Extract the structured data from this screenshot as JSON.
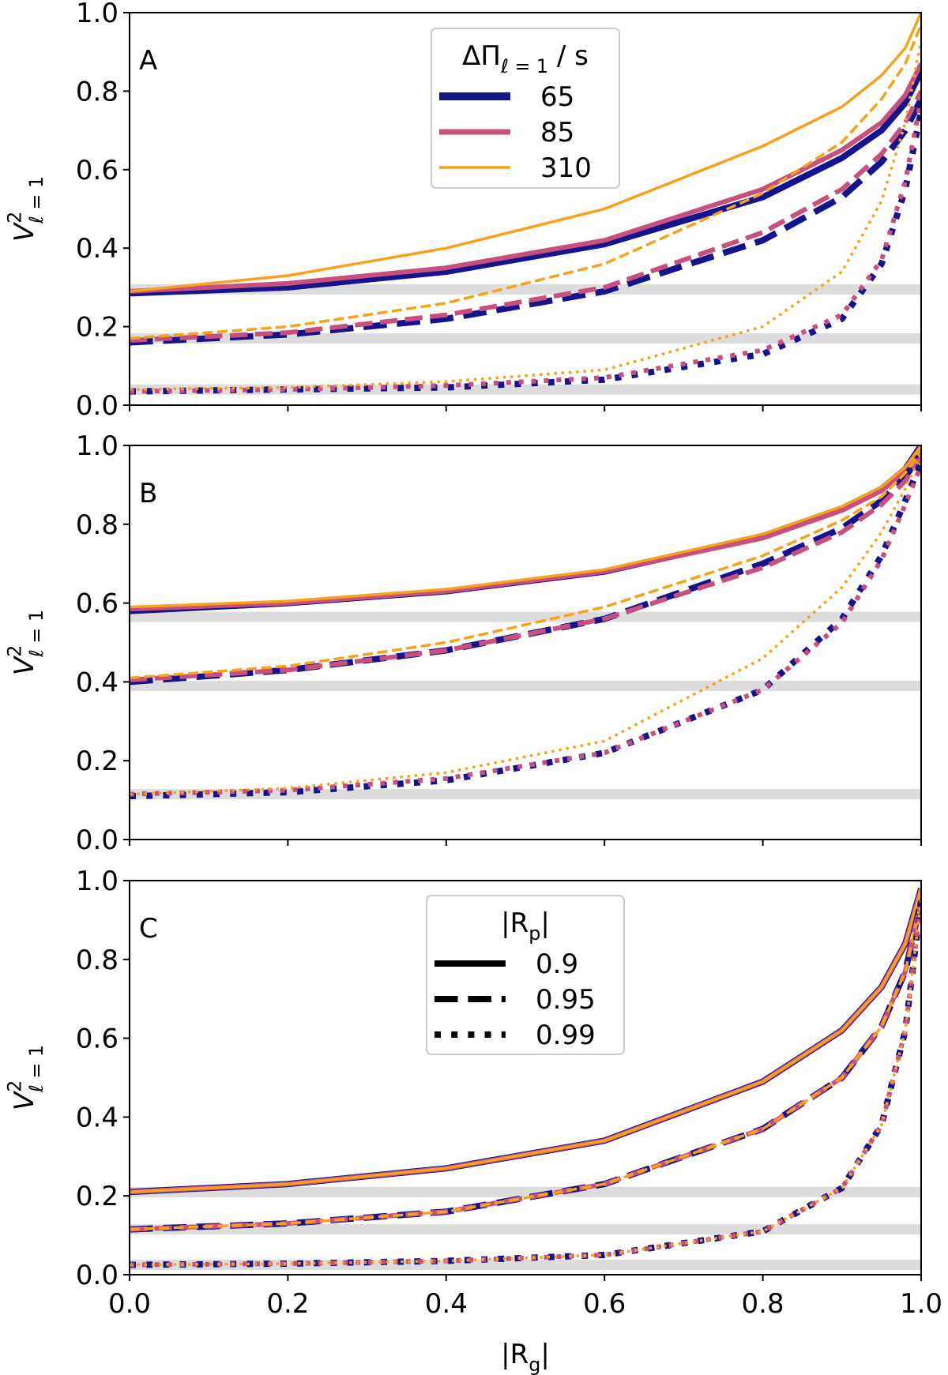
{
  "chart_data": [
    {
      "type": "line",
      "panel_label": "A",
      "ylabel": {
        "base": "V",
        "sup": "2",
        "sub": "ℓ = 1"
      },
      "x": [
        0,
        0.2,
        0.4,
        0.6,
        0.8,
        0.9,
        0.95,
        0.98,
        1.0
      ],
      "xlim": [
        0,
        1
      ],
      "ylim": [
        0,
        1
      ],
      "xticks": [
        {
          "value": 0,
          "label": "0.0"
        },
        {
          "value": 0.2,
          "label": "0.2"
        },
        {
          "value": 0.4,
          "label": "0.4"
        },
        {
          "value": 0.6,
          "label": "0.6"
        },
        {
          "value": 0.8,
          "label": "0.8"
        },
        {
          "value": 1,
          "label": "1.0"
        }
      ],
      "show_xticklabels": false,
      "yticks": [
        {
          "value": 0,
          "label": "0.0"
        },
        {
          "value": 0.2,
          "label": "0.2"
        },
        {
          "value": 0.4,
          "label": "0.4"
        },
        {
          "value": 0.6,
          "label": "0.6"
        },
        {
          "value": 0.8,
          "label": "0.8"
        },
        {
          "value": 1,
          "label": "1.0"
        }
      ],
      "reference_lines": [
        0.295,
        0.17,
        0.04
      ],
      "legend": {
        "corner": "top-center",
        "title": {
          "base": "ΔΠ",
          "sub": "ℓ = 1",
          "tail": " / s"
        },
        "entries": [
          {
            "label": "65",
            "color": "#14148c",
            "style": "solid",
            "width": 10
          },
          {
            "label": "85",
            "color": "#c8507e",
            "style": "solid",
            "width": 7
          },
          {
            "label": "310",
            "color": "#f9a11b",
            "style": "solid",
            "width": 3.5
          }
        ]
      },
      "series": [
        {
          "color": "#14148c",
          "style": "solid",
          "width": 8,
          "values": [
            0.285,
            0.3,
            0.34,
            0.41,
            0.53,
            0.63,
            0.7,
            0.77,
            0.85
          ]
        },
        {
          "color": "#c8507e",
          "style": "solid",
          "width": 6,
          "values": [
            0.29,
            0.31,
            0.35,
            0.42,
            0.55,
            0.65,
            0.72,
            0.79,
            0.87
          ]
        },
        {
          "color": "#f9a11b",
          "style": "solid",
          "width": 3.5,
          "values": [
            0.29,
            0.33,
            0.4,
            0.5,
            0.66,
            0.76,
            0.84,
            0.91,
            1.0
          ]
        },
        {
          "color": "#14148c",
          "style": "dashed",
          "width": 8,
          "values": [
            0.16,
            0.18,
            0.22,
            0.29,
            0.42,
            0.53,
            0.62,
            0.7,
            0.78
          ]
        },
        {
          "color": "#c8507e",
          "style": "dashed",
          "width": 6,
          "values": [
            0.165,
            0.185,
            0.23,
            0.3,
            0.44,
            0.55,
            0.64,
            0.72,
            0.8
          ]
        },
        {
          "color": "#f9a11b",
          "style": "dashed",
          "width": 3.5,
          "values": [
            0.17,
            0.2,
            0.26,
            0.36,
            0.54,
            0.67,
            0.78,
            0.87,
            0.97
          ]
        },
        {
          "color": "#14148c",
          "style": "dotted",
          "width": 8,
          "values": [
            0.035,
            0.04,
            0.045,
            0.065,
            0.13,
            0.22,
            0.36,
            0.55,
            0.75
          ]
        },
        {
          "color": "#c8507e",
          "style": "dotted",
          "width": 6,
          "values": [
            0.035,
            0.04,
            0.05,
            0.07,
            0.14,
            0.23,
            0.37,
            0.57,
            0.78
          ]
        },
        {
          "color": "#f9a11b",
          "style": "dotted",
          "width": 3.5,
          "values": [
            0.04,
            0.045,
            0.06,
            0.09,
            0.2,
            0.34,
            0.52,
            0.72,
            0.93
          ]
        }
      ]
    },
    {
      "type": "line",
      "panel_label": "B",
      "ylabel": {
        "base": "V",
        "sup": "2",
        "sub": "ℓ = 1"
      },
      "x": [
        0,
        0.2,
        0.4,
        0.6,
        0.8,
        0.9,
        0.95,
        0.98,
        1.0
      ],
      "xlim": [
        0,
        1
      ],
      "ylim": [
        0,
        1
      ],
      "xticks": [
        {
          "value": 0,
          "label": "0.0"
        },
        {
          "value": 0.2,
          "label": "0.2"
        },
        {
          "value": 0.4,
          "label": "0.4"
        },
        {
          "value": 0.6,
          "label": "0.6"
        },
        {
          "value": 0.8,
          "label": "0.8"
        },
        {
          "value": 1,
          "label": "1.0"
        }
      ],
      "show_xticklabels": false,
      "yticks": [
        {
          "value": 0,
          "label": "0.0"
        },
        {
          "value": 0.2,
          "label": "0.2"
        },
        {
          "value": 0.4,
          "label": "0.4"
        },
        {
          "value": 0.6,
          "label": "0.6"
        },
        {
          "value": 0.8,
          "label": "0.8"
        },
        {
          "value": 1,
          "label": "1.0"
        }
      ],
      "reference_lines": [
        0.565,
        0.39,
        0.115
      ],
      "series": [
        {
          "color": "#14148c",
          "style": "solid",
          "width": 8,
          "values": [
            0.58,
            0.6,
            0.63,
            0.68,
            0.77,
            0.84,
            0.89,
            0.94,
            1.0
          ]
        },
        {
          "color": "#c8507e",
          "style": "solid",
          "width": 6,
          "values": [
            0.585,
            0.6,
            0.63,
            0.68,
            0.765,
            0.835,
            0.885,
            0.935,
            0.99
          ]
        },
        {
          "color": "#f9a11b",
          "style": "solid",
          "width": 3.5,
          "values": [
            0.59,
            0.605,
            0.635,
            0.685,
            0.775,
            0.845,
            0.895,
            0.945,
            1.0
          ]
        },
        {
          "color": "#14148c",
          "style": "dashed",
          "width": 8,
          "values": [
            0.4,
            0.43,
            0.48,
            0.56,
            0.7,
            0.79,
            0.86,
            0.92,
            0.98
          ]
        },
        {
          "color": "#c8507e",
          "style": "dashed",
          "width": 6,
          "values": [
            0.405,
            0.43,
            0.48,
            0.56,
            0.69,
            0.78,
            0.85,
            0.91,
            0.97
          ]
        },
        {
          "color": "#f9a11b",
          "style": "dashed",
          "width": 3.5,
          "values": [
            0.41,
            0.44,
            0.5,
            0.59,
            0.72,
            0.81,
            0.87,
            0.93,
            0.99
          ]
        },
        {
          "color": "#14148c",
          "style": "dotted",
          "width": 8,
          "values": [
            0.11,
            0.12,
            0.15,
            0.22,
            0.38,
            0.56,
            0.72,
            0.86,
            0.96
          ]
        },
        {
          "color": "#c8507e",
          "style": "dotted",
          "width": 6,
          "values": [
            0.115,
            0.125,
            0.155,
            0.22,
            0.38,
            0.55,
            0.71,
            0.85,
            0.95
          ]
        },
        {
          "color": "#f9a11b",
          "style": "dotted",
          "width": 3.5,
          "values": [
            0.115,
            0.13,
            0.17,
            0.25,
            0.46,
            0.64,
            0.78,
            0.89,
            0.98
          ]
        }
      ]
    },
    {
      "type": "line",
      "panel_label": "C",
      "ylabel": {
        "base": "V",
        "sup": "2",
        "sub": "ℓ = 1"
      },
      "xlabel": {
        "base": "|R",
        "sub": "g",
        "tail": "|"
      },
      "x": [
        0,
        0.2,
        0.4,
        0.6,
        0.8,
        0.9,
        0.95,
        0.98,
        1.0
      ],
      "xlim": [
        0,
        1
      ],
      "ylim": [
        0,
        1
      ],
      "xticks": [
        {
          "value": 0,
          "label": "0.0"
        },
        {
          "value": 0.2,
          "label": "0.2"
        },
        {
          "value": 0.4,
          "label": "0.4"
        },
        {
          "value": 0.6,
          "label": "0.6"
        },
        {
          "value": 0.8,
          "label": "0.8"
        },
        {
          "value": 1,
          "label": "1.0"
        }
      ],
      "show_xticklabels": true,
      "yticks": [
        {
          "value": 0,
          "label": "0.0"
        },
        {
          "value": 0.2,
          "label": "0.2"
        },
        {
          "value": 0.4,
          "label": "0.4"
        },
        {
          "value": 0.6,
          "label": "0.6"
        },
        {
          "value": 0.8,
          "label": "0.8"
        },
        {
          "value": 1,
          "label": "1.0"
        }
      ],
      "reference_lines": [
        0.21,
        0.115,
        0.025
      ],
      "legend": {
        "corner": "top-center",
        "title": {
          "base": "|R",
          "sub": "p",
          "tail": "|"
        },
        "entries": [
          {
            "label": "0.9",
            "color": "#000000",
            "style": "solid",
            "width": 8
          },
          {
            "label": "0.95",
            "color": "#000000",
            "style": "dashed",
            "width": 8
          },
          {
            "label": "0.99",
            "color": "#000000",
            "style": "dotted",
            "width": 8
          }
        ]
      },
      "series": [
        {
          "color": "#14148c",
          "style": "solid",
          "width": 8,
          "values": [
            0.21,
            0.23,
            0.27,
            0.34,
            0.49,
            0.62,
            0.73,
            0.84,
            0.98
          ]
        },
        {
          "color": "#c8507e",
          "style": "solid",
          "width": 6,
          "values": [
            0.21,
            0.23,
            0.27,
            0.34,
            0.49,
            0.62,
            0.73,
            0.84,
            0.98
          ]
        },
        {
          "color": "#f9a11b",
          "style": "solid",
          "width": 3.5,
          "values": [
            0.21,
            0.23,
            0.27,
            0.34,
            0.49,
            0.62,
            0.73,
            0.84,
            0.98
          ]
        },
        {
          "color": "#14148c",
          "style": "dashed",
          "width": 8,
          "values": [
            0.115,
            0.13,
            0.16,
            0.23,
            0.37,
            0.5,
            0.63,
            0.77,
            0.95
          ]
        },
        {
          "color": "#c8507e",
          "style": "dashed",
          "width": 6,
          "values": [
            0.115,
            0.13,
            0.16,
            0.23,
            0.37,
            0.5,
            0.63,
            0.77,
            0.95
          ]
        },
        {
          "color": "#f9a11b",
          "style": "dashed",
          "width": 3.5,
          "values": [
            0.115,
            0.13,
            0.16,
            0.23,
            0.37,
            0.5,
            0.63,
            0.77,
            0.95
          ]
        },
        {
          "color": "#14148c",
          "style": "dotted",
          "width": 8,
          "values": [
            0.025,
            0.028,
            0.035,
            0.05,
            0.11,
            0.22,
            0.38,
            0.62,
            0.95
          ]
        },
        {
          "color": "#c8507e",
          "style": "dotted",
          "width": 6,
          "values": [
            0.025,
            0.028,
            0.035,
            0.05,
            0.11,
            0.22,
            0.38,
            0.62,
            0.95
          ]
        },
        {
          "color": "#f9a11b",
          "style": "dotted",
          "width": 3.5,
          "values": [
            0.025,
            0.028,
            0.035,
            0.05,
            0.11,
            0.22,
            0.38,
            0.62,
            0.95
          ]
        }
      ]
    }
  ]
}
